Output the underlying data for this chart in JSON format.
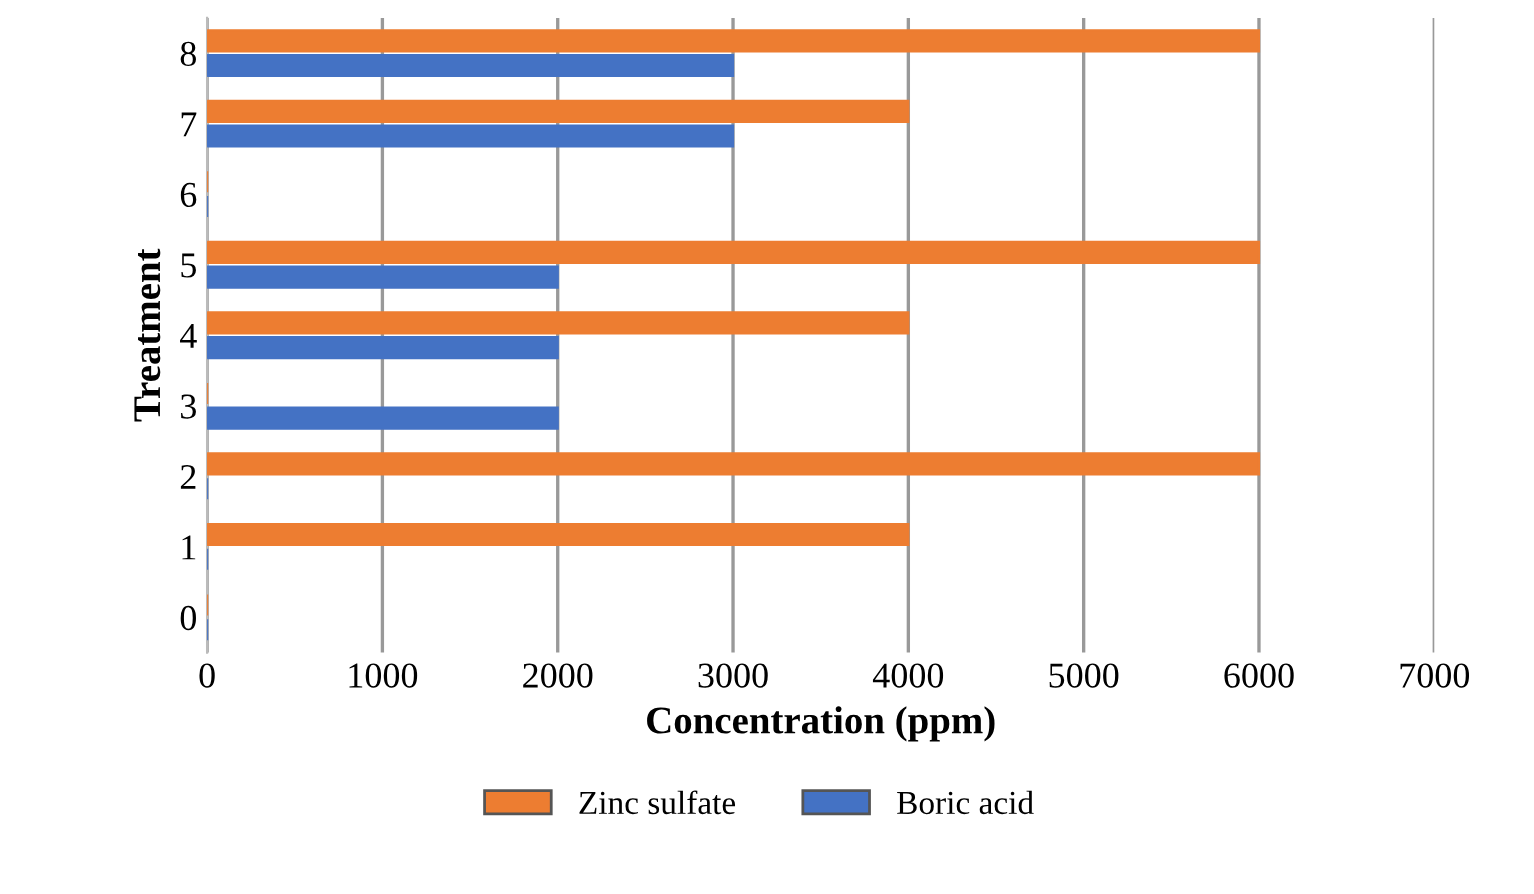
{
  "chart_data": {
    "type": "bar",
    "orientation": "horizontal",
    "categories": [
      "8",
      "7",
      "6",
      "5",
      "4",
      "3",
      "2",
      "1",
      "0"
    ],
    "series": [
      {
        "name": "Zinc sulfate",
        "color": "#ed7d31",
        "values": [
          6000,
          4000,
          0,
          6000,
          4000,
          0,
          6000,
          4000,
          0
        ]
      },
      {
        "name": "Boric acid",
        "color": "#4472c4",
        "values": [
          3000,
          3000,
          0,
          2000,
          2000,
          2000,
          0,
          0,
          0
        ]
      }
    ],
    "xlabel": "Concentration (ppm)",
    "ylabel": "Treatment",
    "xlim": [
      0,
      7000
    ],
    "xticks": [
      0,
      1000,
      2000,
      3000,
      4000,
      5000,
      6000,
      7000
    ],
    "grid": "x",
    "legend": "bottom"
  }
}
